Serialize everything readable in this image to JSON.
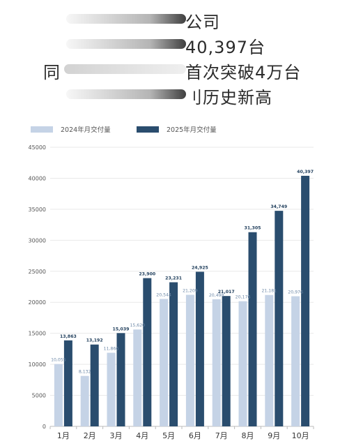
{
  "headline": {
    "line1": "公司",
    "line2": "40,397台",
    "line3_prefix": "同",
    "line3": "首次突破4万台",
    "line4": "刂历史新高"
  },
  "colors": {
    "series_2024": "#c5d3e6",
    "series_2025": "#2a4d6e",
    "grid": "#e9e9e9",
    "label_2024": "#6f8aa8",
    "label_2025": "#23415e"
  },
  "chart_data": {
    "type": "bar",
    "categories": [
      "1月",
      "2月",
      "3月",
      "4月",
      "5月",
      "6月",
      "7月",
      "8月",
      "9月",
      "10月"
    ],
    "series": [
      {
        "name": "2024年月交付量",
        "values": [
          10055,
          8132,
          11866,
          15620,
          20544,
          21209,
          20498,
          20176,
          21181,
          20976
        ],
        "labels": [
          "10,055",
          "8,132",
          "11,866",
          "15,620",
          "20,544",
          "21,209",
          "20,498",
          "20,176",
          "21,181",
          "20,976"
        ]
      },
      {
        "name": "2025年月交付量",
        "values": [
          13863,
          13192,
          15039,
          23900,
          23231,
          24925,
          21017,
          31305,
          34749,
          40397
        ],
        "labels": [
          "13,863",
          "13,192",
          "15,039",
          "23,900",
          "23,231",
          "24,925",
          "21,017",
          "31,305",
          "34,749",
          "40,397"
        ]
      }
    ],
    "ylim": [
      0,
      45000
    ],
    "yticks": [
      "0",
      "5000",
      "10000",
      "15000",
      "20000",
      "25000",
      "30000",
      "35000",
      "40000",
      "45000"
    ],
    "legend": "top-left",
    "grid": true
  }
}
